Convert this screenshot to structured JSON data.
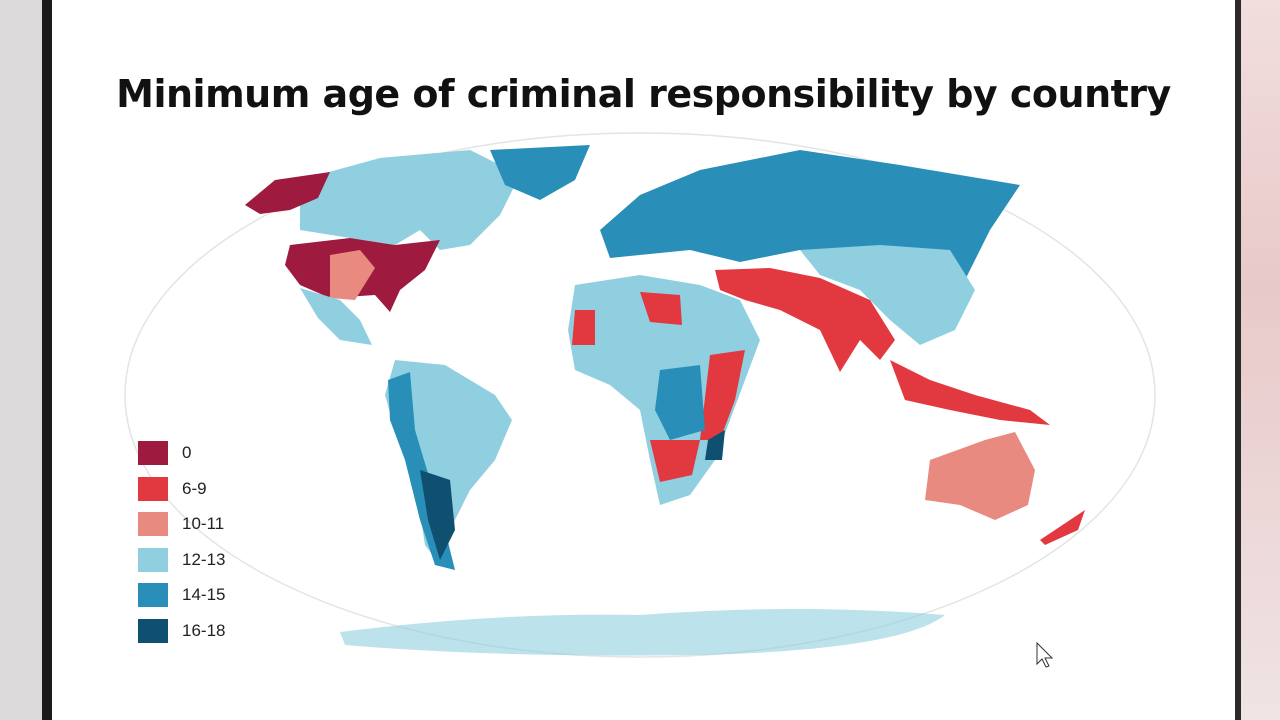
{
  "title": "Minimum age of criminal responsibility by country",
  "legend": [
    {
      "label": "0",
      "color": "#9e1a3f"
    },
    {
      "label": "6-9",
      "color": "#e2383f"
    },
    {
      "label": "10-11",
      "color": "#e88a80"
    },
    {
      "label": "12-13",
      "color": "#8fcfe0"
    },
    {
      "label": "14-15",
      "color": "#2a8fb8"
    },
    {
      "label": "16-18",
      "color": "#0f4f70"
    }
  ]
}
